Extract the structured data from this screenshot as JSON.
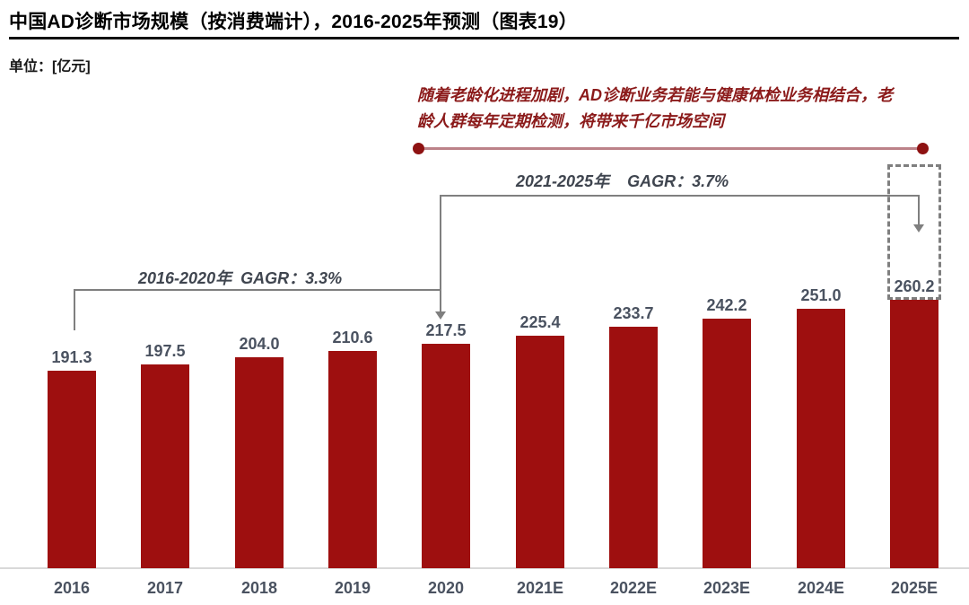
{
  "header": {
    "title": "中国AD诊断市场规模（按消费端计），2016-2025年预测（图表19）",
    "unit": "单位：[亿元]"
  },
  "annotation": {
    "lines": [
      "随着老龄化进程加剧，AD诊断业务若能与健康体检业务相结合，老",
      "龄人群每年定期检测，将带来千亿市场空间"
    ]
  },
  "cagr": {
    "period_2016_2020": "2016-2020年  GAGR：3.3%",
    "period_2021_2025": "2021-2025年    GAGR：3.7%"
  },
  "chart_data": {
    "type": "bar",
    "title": "中国AD诊断市场规模（按消费端计），2016-2025年预测（图表19）",
    "unit": "亿元",
    "categories": [
      "2016",
      "2017",
      "2018",
      "2019",
      "2020",
      "2021E",
      "2022E",
      "2023E",
      "2024E",
      "2025E"
    ],
    "values": [
      191.3,
      197.5,
      204.0,
      210.6,
      217.5,
      225.4,
      233.7,
      242.2,
      251.0,
      260.2
    ],
    "value_labels": [
      "191.3",
      "197.5",
      "204.0",
      "210.6",
      "217.5",
      "225.4",
      "233.7",
      "242.2",
      "251.0",
      "260.2"
    ],
    "xlabel": "",
    "ylabel": "",
    "ylim": [
      0,
      400
    ],
    "y_axis_visible": false,
    "gridlines": false,
    "legend": "none",
    "annotations": {
      "note": "随着老龄化进程加剧，AD诊断业务若能与健康体检业务相结合，老龄人群每年定期检测，将带来千亿市场空间",
      "cagr_2016_2020": "GAGR：3.3%",
      "cagr_2021_2025": "GAGR：3.7%",
      "highlighted_bar": "2025E"
    },
    "colors": {
      "bar": "#9E0F0F",
      "value_label": "#4A5260",
      "axis_label": "#4A5260",
      "title": "#000000",
      "annotation_text": "#8B1A1A",
      "annotation_line": "#BC8289",
      "annotation_dot": "#8E1212",
      "connector": "#7F7F7F",
      "axis_line": "#D9D9D9"
    }
  }
}
